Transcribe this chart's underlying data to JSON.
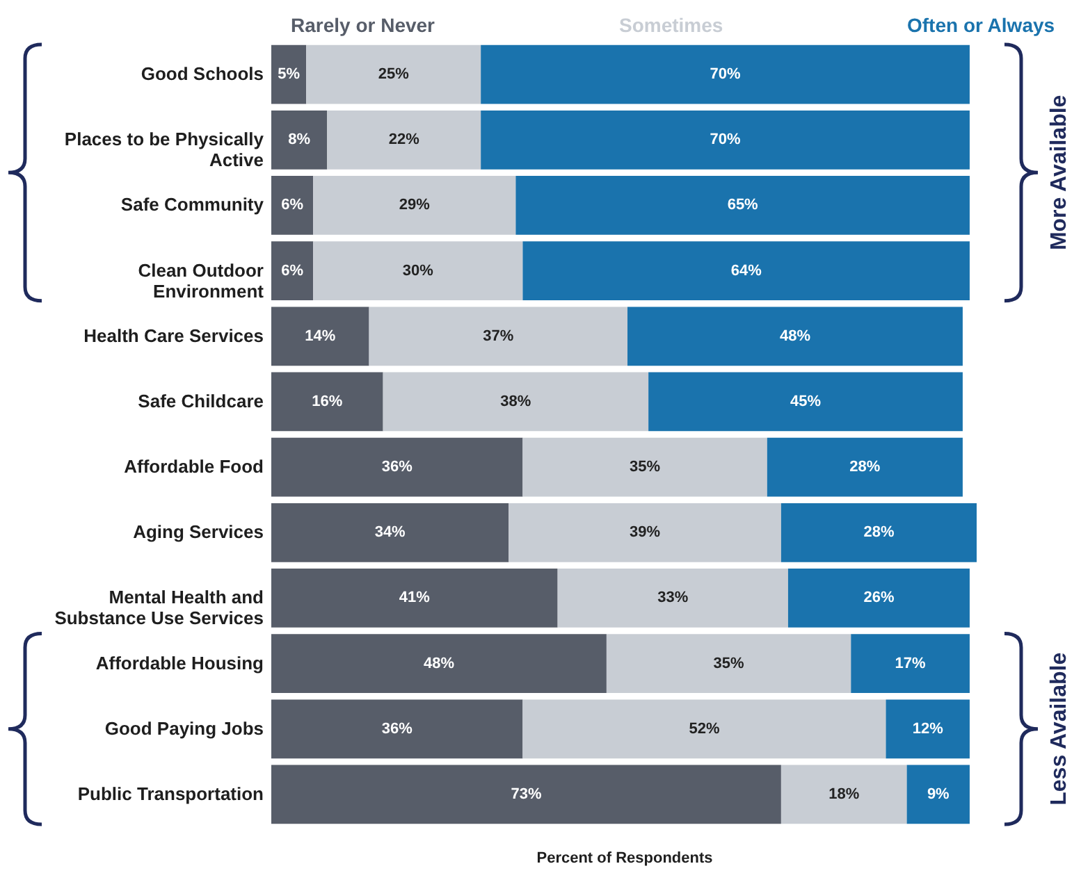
{
  "chart_data": {
    "type": "bar",
    "orientation": "horizontal",
    "stacked": true,
    "xlabel": "Percent of Respondents",
    "legend": "top",
    "tick_labels": "y",
    "grid": false,
    "categories": [
      "Good Schools",
      "Places to be Physically Active",
      "Safe Community",
      "Clean Outdoor Environment",
      "Health Care Services",
      "Safe Childcare",
      "Affordable Food",
      "Aging Services",
      "Mental Health and Substance Use Services",
      "Affordable Housing",
      "Good Paying Jobs",
      "Public Transportation"
    ],
    "series": [
      {
        "name": "Rarely or Never",
        "color": "#575d69",
        "values": [
          5,
          8,
          6,
          6,
          14,
          16,
          36,
          34,
          41,
          48,
          36,
          73
        ],
        "value_labels": [
          "5%",
          "8%",
          "6%",
          "6%",
          "14%",
          "16%",
          "36%",
          "34%",
          "41%",
          "48%",
          "36%",
          "73%"
        ]
      },
      {
        "name": "Sometimes",
        "color": "#c8cdd4",
        "values": [
          25,
          22,
          29,
          30,
          37,
          38,
          35,
          39,
          33,
          35,
          52,
          18
        ],
        "value_labels": [
          "25%",
          "22%",
          "29%",
          "30%",
          "37%",
          "38%",
          "35%",
          "39%",
          "33%",
          "35%",
          "52%",
          "18%"
        ]
      },
      {
        "name": "Often or Always",
        "color": "#1a73ad",
        "values": [
          70,
          70,
          65,
          64,
          48,
          45,
          28,
          28,
          26,
          17,
          12,
          9
        ],
        "value_labels": [
          "70%",
          "70%",
          "65%",
          "64%",
          "48%",
          "45%",
          "28%",
          "28%",
          "26%",
          "17%",
          "12%",
          "9%"
        ]
      }
    ],
    "annotations": [
      "More Available",
      "Less Available"
    ]
  }
}
